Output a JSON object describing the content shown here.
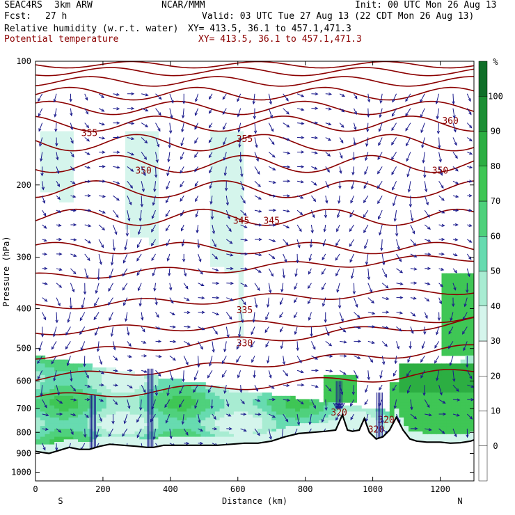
{
  "header": {
    "project": "SEAC4RS",
    "model": "3km ARW",
    "org": "NCAR/MMM",
    "init": "Init: 00 UTC Mon 26 Aug 13",
    "fcst_label": "Fcst:",
    "fcst_value": "27 h",
    "valid": "Valid: 03 UTC Tue 27 Aug 13 (22 CDT Mon 26 Aug 13)",
    "field1": "Relative humidity (w.r.t. water)",
    "field1_xy": "XY= 413.5, 36.1 to 457.1,471.3",
    "field2": "Potential temperature",
    "field2_xy": "XY= 413.5, 36.1 to 457.1,471.3"
  },
  "colors": {
    "theta": "#8b0000",
    "wind": "#1a1a8c",
    "terrain": "#000000",
    "rh_bins": [
      "#ffffff",
      "#ffffff",
      "#ffffff",
      "#ffffff",
      "#d5f5ec",
      "#a8ecd2",
      "#67dbb0",
      "#4fd17c",
      "#3fc655",
      "#2cae42",
      "#1c8f34",
      "#0f6e28"
    ]
  },
  "chart_data": {
    "type": "heatmap",
    "title": "Relative humidity (w.r.t. water)",
    "xlabel": "Distance (km)",
    "ylabel": "Pressure (hPa)",
    "x_range": [
      0,
      1300
    ],
    "y_range": [
      100,
      1050
    ],
    "y_log": true,
    "x_ticks": [
      0,
      200,
      400,
      600,
      800,
      1000,
      1200
    ],
    "y_ticks": [
      100,
      200,
      300,
      400,
      500,
      600,
      700,
      800,
      900,
      1000
    ],
    "left_end_label": "S",
    "right_end_label": "N",
    "colorbar": {
      "unit": "%",
      "tick_labels": [
        "0",
        "10",
        "20",
        "30",
        "40",
        "50",
        "60",
        "70",
        "80",
        "90",
        "100"
      ]
    },
    "theta_contours": [
      {
        "label": "320",
        "value": 320,
        "labels_at": [
          [
            900,
            718
          ],
          [
            1040,
            748
          ],
          [
            1010,
            790
          ]
        ]
      },
      {
        "label": "330",
        "value": 330,
        "labels_at": [
          [
            620,
            487
          ]
        ]
      },
      {
        "label": "335",
        "value": 335,
        "labels_at": [
          [
            620,
            405
          ]
        ]
      },
      {
        "label": "345",
        "value": 345,
        "labels_at": [
          [
            610,
            245
          ],
          [
            700,
            245
          ]
        ]
      },
      {
        "label": "350",
        "value": 350,
        "labels_at": [
          [
            320,
            185
          ],
          [
            1200,
            185
          ]
        ]
      },
      {
        "label": "355",
        "value": 355,
        "labels_at": [
          [
            160,
            150
          ],
          [
            620,
            155
          ]
        ]
      },
      {
        "label": "360",
        "value": 360,
        "labels_at": [
          [
            1230,
            140
          ]
        ]
      }
    ],
    "terrain_profile_hPa": [
      [
        0,
        890
      ],
      [
        40,
        900
      ],
      [
        70,
        885
      ],
      [
        100,
        870
      ],
      [
        130,
        880
      ],
      [
        160,
        880
      ],
      [
        190,
        865
      ],
      [
        220,
        855
      ],
      [
        260,
        860
      ],
      [
        300,
        865
      ],
      [
        330,
        870
      ],
      [
        350,
        870
      ],
      [
        380,
        860
      ],
      [
        420,
        860
      ],
      [
        460,
        860
      ],
      [
        500,
        860
      ],
      [
        540,
        860
      ],
      [
        580,
        855
      ],
      [
        620,
        850
      ],
      [
        660,
        850
      ],
      [
        700,
        840
      ],
      [
        740,
        820
      ],
      [
        780,
        805
      ],
      [
        820,
        800
      ],
      [
        860,
        795
      ],
      [
        890,
        790
      ],
      [
        910,
        725
      ],
      [
        925,
        790
      ],
      [
        940,
        795
      ],
      [
        960,
        790
      ],
      [
        975,
        740
      ],
      [
        990,
        800
      ],
      [
        1010,
        830
      ],
      [
        1030,
        820
      ],
      [
        1050,
        790
      ],
      [
        1070,
        735
      ],
      [
        1090,
        790
      ],
      [
        1110,
        830
      ],
      [
        1130,
        840
      ],
      [
        1160,
        845
      ],
      [
        1200,
        845
      ],
      [
        1230,
        850
      ],
      [
        1260,
        848
      ],
      [
        1290,
        840
      ],
      [
        1300,
        835
      ]
    ]
  }
}
